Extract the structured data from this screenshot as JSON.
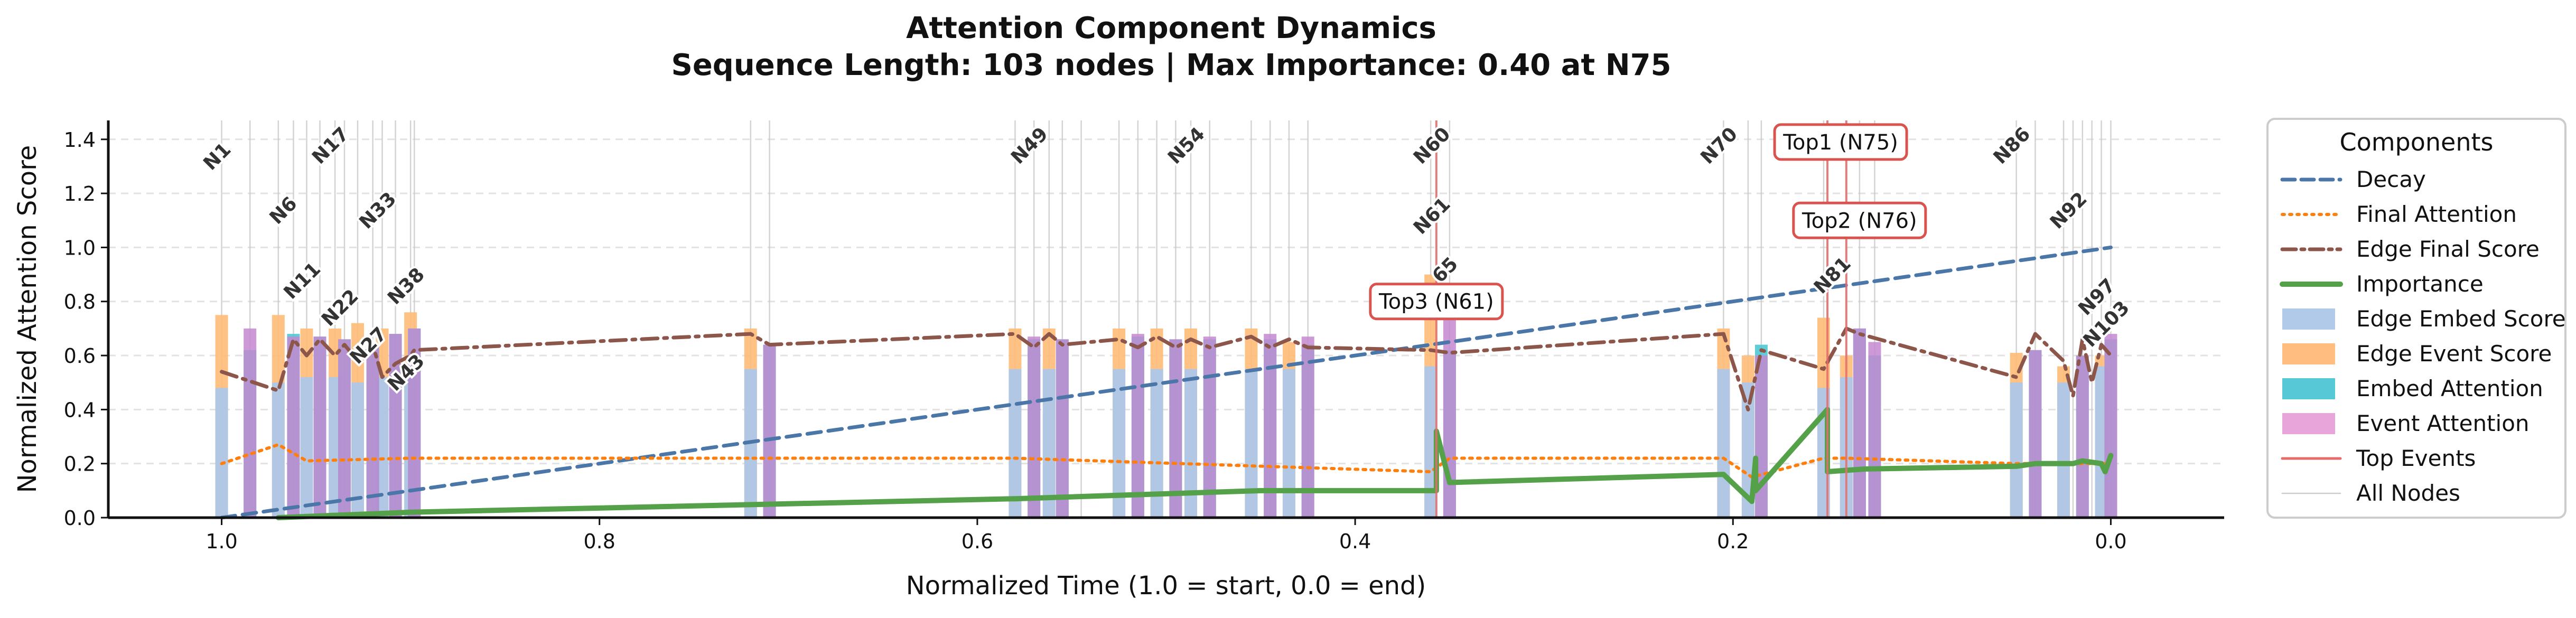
{
  "chart_data": {
    "type": "bar",
    "title": "Attention Component Dynamics",
    "subtitle": "Sequence Length: 103 nodes | Max Importance: 0.40 at N75",
    "xlabel": "Normalized Time (1.0 = start, 0.0 = end)",
    "ylabel": "Normalized Attention Score",
    "xlim": [
      1.06,
      -0.06
    ],
    "ylim": [
      0,
      1.47
    ],
    "x_inverted": true,
    "xticks": [
      1.0,
      0.8,
      0.6,
      0.4,
      0.2,
      0.0
    ],
    "xtick_labels": [
      "1.0",
      "0.8",
      "0.6",
      "0.4",
      "0.2",
      "0.0"
    ],
    "yticks": [
      0.0,
      0.2,
      0.4,
      0.6,
      0.8,
      1.0,
      1.2,
      1.4
    ],
    "ytick_labels": [
      "0.0",
      "0.2",
      "0.4",
      "0.6",
      "0.8",
      "1.0",
      "1.2",
      "1.4"
    ],
    "grid": "y-dashed",
    "legend": {
      "title": "Components",
      "position": "right-outside",
      "entries": [
        {
          "label": "Decay",
          "color": "#4a76a8",
          "style": "dashed-line"
        },
        {
          "label": "Final Attention",
          "color": "#ff7f0e",
          "style": "dotted-line"
        },
        {
          "label": "Edge Final Score",
          "color": "#8c564b",
          "style": "dashdot-line"
        },
        {
          "label": "Importance",
          "color": "#55a14a",
          "style": "solid-line"
        },
        {
          "label": "Edge Embed Score",
          "color": "#aec7e8",
          "style": "patch"
        },
        {
          "label": "Edge Event Score",
          "color": "#ffbb78",
          "style": "patch"
        },
        {
          "label": "Embed Attention",
          "color": "#4ec6d4",
          "style": "patch"
        },
        {
          "label": "Event Attention",
          "color": "#e7a0d8",
          "style": "patch"
        },
        {
          "label": "Top Events",
          "color": "#e66c6c",
          "style": "line"
        },
        {
          "label": "All Nodes",
          "color": "#cccccc",
          "style": "thin-line"
        }
      ]
    },
    "node_labels": [
      {
        "label": "N1",
        "x": 1.0
      },
      {
        "label": "N6",
        "x": 0.965
      },
      {
        "label": "N11",
        "x": 0.955
      },
      {
        "label": "N17",
        "x": 0.94
      },
      {
        "label": "N22",
        "x": 0.935
      },
      {
        "label": "N27",
        "x": 0.92
      },
      {
        "label": "N33",
        "x": 0.915
      },
      {
        "label": "N38",
        "x": 0.9
      },
      {
        "label": "N43",
        "x": 0.9
      },
      {
        "label": "N49",
        "x": 0.57
      },
      {
        "label": "N54",
        "x": 0.487
      },
      {
        "label": "N60",
        "x": 0.357
      },
      {
        "label": "N61",
        "x": 0.357
      },
      {
        "label": "65",
        "x": 0.35
      },
      {
        "label": "N70",
        "x": 0.205
      },
      {
        "label": "N81",
        "x": 0.145
      },
      {
        "label": "N86",
        "x": 0.05
      },
      {
        "label": "N92",
        "x": 0.02
      },
      {
        "label": "N97",
        "x": 0.005
      },
      {
        "label": "N103",
        "x": 0.0
      }
    ],
    "top_events": [
      {
        "label": "Top1 (N75)",
        "x": 0.15
      },
      {
        "label": "Top2 (N76)",
        "x": 0.14
      },
      {
        "label": "Top3 (N61)",
        "x": 0.357
      }
    ],
    "node_positions": [
      1.0,
      0.985,
      0.97,
      0.962,
      0.955,
      0.948,
      0.94,
      0.935,
      0.928,
      0.92,
      0.915,
      0.908,
      0.9,
      0.898,
      0.72,
      0.71,
      0.58,
      0.57,
      0.562,
      0.555,
      0.545,
      0.525,
      0.515,
      0.505,
      0.495,
      0.487,
      0.477,
      0.455,
      0.445,
      0.435,
      0.425,
      0.36,
      0.357,
      0.35,
      0.205,
      0.192,
      0.185,
      0.152,
      0.15,
      0.14,
      0.133,
      0.125,
      0.05,
      0.04,
      0.025,
      0.02,
      0.015,
      0.01,
      0.005,
      0.0
    ],
    "bars": {
      "edge_embed_score": [
        {
          "x": 1.0,
          "value": 0.48
        },
        {
          "x": 0.97,
          "value": 0.5
        },
        {
          "x": 0.955,
          "value": 0.52
        },
        {
          "x": 0.94,
          "value": 0.52
        },
        {
          "x": 0.928,
          "value": 0.5
        },
        {
          "x": 0.915,
          "value": 0.52
        },
        {
          "x": 0.9,
          "value": 0.55
        },
        {
          "x": 0.72,
          "value": 0.55
        },
        {
          "x": 0.58,
          "value": 0.55
        },
        {
          "x": 0.562,
          "value": 0.55
        },
        {
          "x": 0.525,
          "value": 0.55
        },
        {
          "x": 0.505,
          "value": 0.55
        },
        {
          "x": 0.487,
          "value": 0.55
        },
        {
          "x": 0.455,
          "value": 0.55
        },
        {
          "x": 0.435,
          "value": 0.55
        },
        {
          "x": 0.36,
          "value": 0.56
        },
        {
          "x": 0.205,
          "value": 0.55
        },
        {
          "x": 0.192,
          "value": 0.5
        },
        {
          "x": 0.152,
          "value": 0.48
        },
        {
          "x": 0.14,
          "value": 0.52
        },
        {
          "x": 0.05,
          "value": 0.5
        },
        {
          "x": 0.025,
          "value": 0.5
        },
        {
          "x": 0.005,
          "value": 0.56
        }
      ],
      "edge_event_score": [
        {
          "x": 1.0,
          "value": 0.75
        },
        {
          "x": 0.97,
          "value": 0.75
        },
        {
          "x": 0.955,
          "value": 0.7
        },
        {
          "x": 0.94,
          "value": 0.7
        },
        {
          "x": 0.928,
          "value": 0.72
        },
        {
          "x": 0.915,
          "value": 0.7
        },
        {
          "x": 0.9,
          "value": 0.76
        },
        {
          "x": 0.72,
          "value": 0.7
        },
        {
          "x": 0.58,
          "value": 0.7
        },
        {
          "x": 0.562,
          "value": 0.7
        },
        {
          "x": 0.525,
          "value": 0.7
        },
        {
          "x": 0.505,
          "value": 0.7
        },
        {
          "x": 0.487,
          "value": 0.7
        },
        {
          "x": 0.455,
          "value": 0.7
        },
        {
          "x": 0.435,
          "value": 0.65
        },
        {
          "x": 0.36,
          "value": 0.9
        },
        {
          "x": 0.205,
          "value": 0.7
        },
        {
          "x": 0.192,
          "value": 0.6
        },
        {
          "x": 0.152,
          "value": 0.74
        },
        {
          "x": 0.14,
          "value": 0.6
        },
        {
          "x": 0.05,
          "value": 0.61
        },
        {
          "x": 0.025,
          "value": 0.56
        },
        {
          "x": 0.005,
          "value": 0.6
        }
      ],
      "embed_attention": [
        {
          "x": 0.985,
          "value": 0.62
        },
        {
          "x": 0.962,
          "value": 0.68
        },
        {
          "x": 0.948,
          "value": 0.67
        },
        {
          "x": 0.935,
          "value": 0.66
        },
        {
          "x": 0.92,
          "value": 0.64
        },
        {
          "x": 0.908,
          "value": 0.68
        },
        {
          "x": 0.898,
          "value": 0.7
        },
        {
          "x": 0.71,
          "value": 0.64
        },
        {
          "x": 0.57,
          "value": 0.66
        },
        {
          "x": 0.555,
          "value": 0.66
        },
        {
          "x": 0.515,
          "value": 0.67
        },
        {
          "x": 0.495,
          "value": 0.66
        },
        {
          "x": 0.477,
          "value": 0.66
        },
        {
          "x": 0.445,
          "value": 0.66
        },
        {
          "x": 0.425,
          "value": 0.64
        },
        {
          "x": 0.35,
          "value": 0.62
        },
        {
          "x": 0.185,
          "value": 0.64
        },
        {
          "x": 0.133,
          "value": 0.7
        },
        {
          "x": 0.125,
          "value": 0.6
        },
        {
          "x": 0.04,
          "value": 0.62
        },
        {
          "x": 0.015,
          "value": 0.6
        },
        {
          "x": 0.0,
          "value": 0.66
        }
      ],
      "event_attention": [
        {
          "x": 0.985,
          "value": 0.7
        },
        {
          "x": 0.962,
          "value": 0.67
        },
        {
          "x": 0.948,
          "value": 0.67
        },
        {
          "x": 0.935,
          "value": 0.66
        },
        {
          "x": 0.92,
          "value": 0.64
        },
        {
          "x": 0.908,
          "value": 0.68
        },
        {
          "x": 0.898,
          "value": 0.7
        },
        {
          "x": 0.71,
          "value": 0.64
        },
        {
          "x": 0.57,
          "value": 0.67
        },
        {
          "x": 0.555,
          "value": 0.66
        },
        {
          "x": 0.515,
          "value": 0.68
        },
        {
          "x": 0.495,
          "value": 0.66
        },
        {
          "x": 0.477,
          "value": 0.67
        },
        {
          "x": 0.445,
          "value": 0.68
        },
        {
          "x": 0.425,
          "value": 0.67
        },
        {
          "x": 0.35,
          "value": 0.75
        },
        {
          "x": 0.185,
          "value": 0.6
        },
        {
          "x": 0.133,
          "value": 0.7
        },
        {
          "x": 0.125,
          "value": 0.65
        },
        {
          "x": 0.04,
          "value": 0.62
        },
        {
          "x": 0.015,
          "value": 0.6
        },
        {
          "x": 0.0,
          "value": 0.68
        }
      ]
    },
    "series": [
      {
        "name": "Decay",
        "x": [
          1.0,
          0.0
        ],
        "y": [
          0.0,
          1.0
        ]
      },
      {
        "name": "Final Attention",
        "x": [
          1.0,
          0.97,
          0.955,
          0.9,
          0.72,
          0.58,
          0.36,
          0.35,
          0.205,
          0.19,
          0.152,
          0.14,
          0.05,
          0.0
        ],
        "y": [
          0.2,
          0.27,
          0.21,
          0.22,
          0.22,
          0.22,
          0.17,
          0.22,
          0.22,
          0.15,
          0.22,
          0.22,
          0.2,
          0.2
        ]
      },
      {
        "name": "Edge Final Score",
        "x": [
          1.0,
          0.97,
          0.962,
          0.955,
          0.948,
          0.94,
          0.935,
          0.928,
          0.92,
          0.915,
          0.908,
          0.9,
          0.898,
          0.72,
          0.71,
          0.58,
          0.57,
          0.562,
          0.555,
          0.525,
          0.515,
          0.505,
          0.495,
          0.487,
          0.477,
          0.455,
          0.445,
          0.435,
          0.425,
          0.36,
          0.35,
          0.205,
          0.192,
          0.185,
          0.152,
          0.14,
          0.133,
          0.05,
          0.04,
          0.025,
          0.02,
          0.015,
          0.01,
          0.005,
          0.0
        ],
        "y": [
          0.54,
          0.47,
          0.66,
          0.6,
          0.66,
          0.6,
          0.64,
          0.58,
          0.64,
          0.52,
          0.57,
          0.6,
          0.62,
          0.68,
          0.64,
          0.68,
          0.63,
          0.68,
          0.64,
          0.66,
          0.63,
          0.67,
          0.63,
          0.66,
          0.63,
          0.67,
          0.63,
          0.66,
          0.63,
          0.62,
          0.61,
          0.68,
          0.4,
          0.62,
          0.55,
          0.7,
          0.68,
          0.52,
          0.68,
          0.58,
          0.45,
          0.66,
          0.5,
          0.64,
          0.6
        ]
      },
      {
        "name": "Importance",
        "x": [
          0.97,
          0.9,
          0.58,
          0.45,
          0.36,
          0.357,
          0.357,
          0.35,
          0.205,
          0.19,
          0.188,
          0.188,
          0.15,
          0.15,
          0.13,
          0.05,
          0.04,
          0.02,
          0.015,
          0.005,
          0.003,
          0.0
        ],
        "y": [
          0.0,
          0.02,
          0.07,
          0.1,
          0.1,
          0.1,
          0.32,
          0.13,
          0.16,
          0.06,
          0.22,
          0.1,
          0.4,
          0.17,
          0.18,
          0.19,
          0.2,
          0.2,
          0.21,
          0.2,
          0.17,
          0.23
        ]
      }
    ]
  }
}
